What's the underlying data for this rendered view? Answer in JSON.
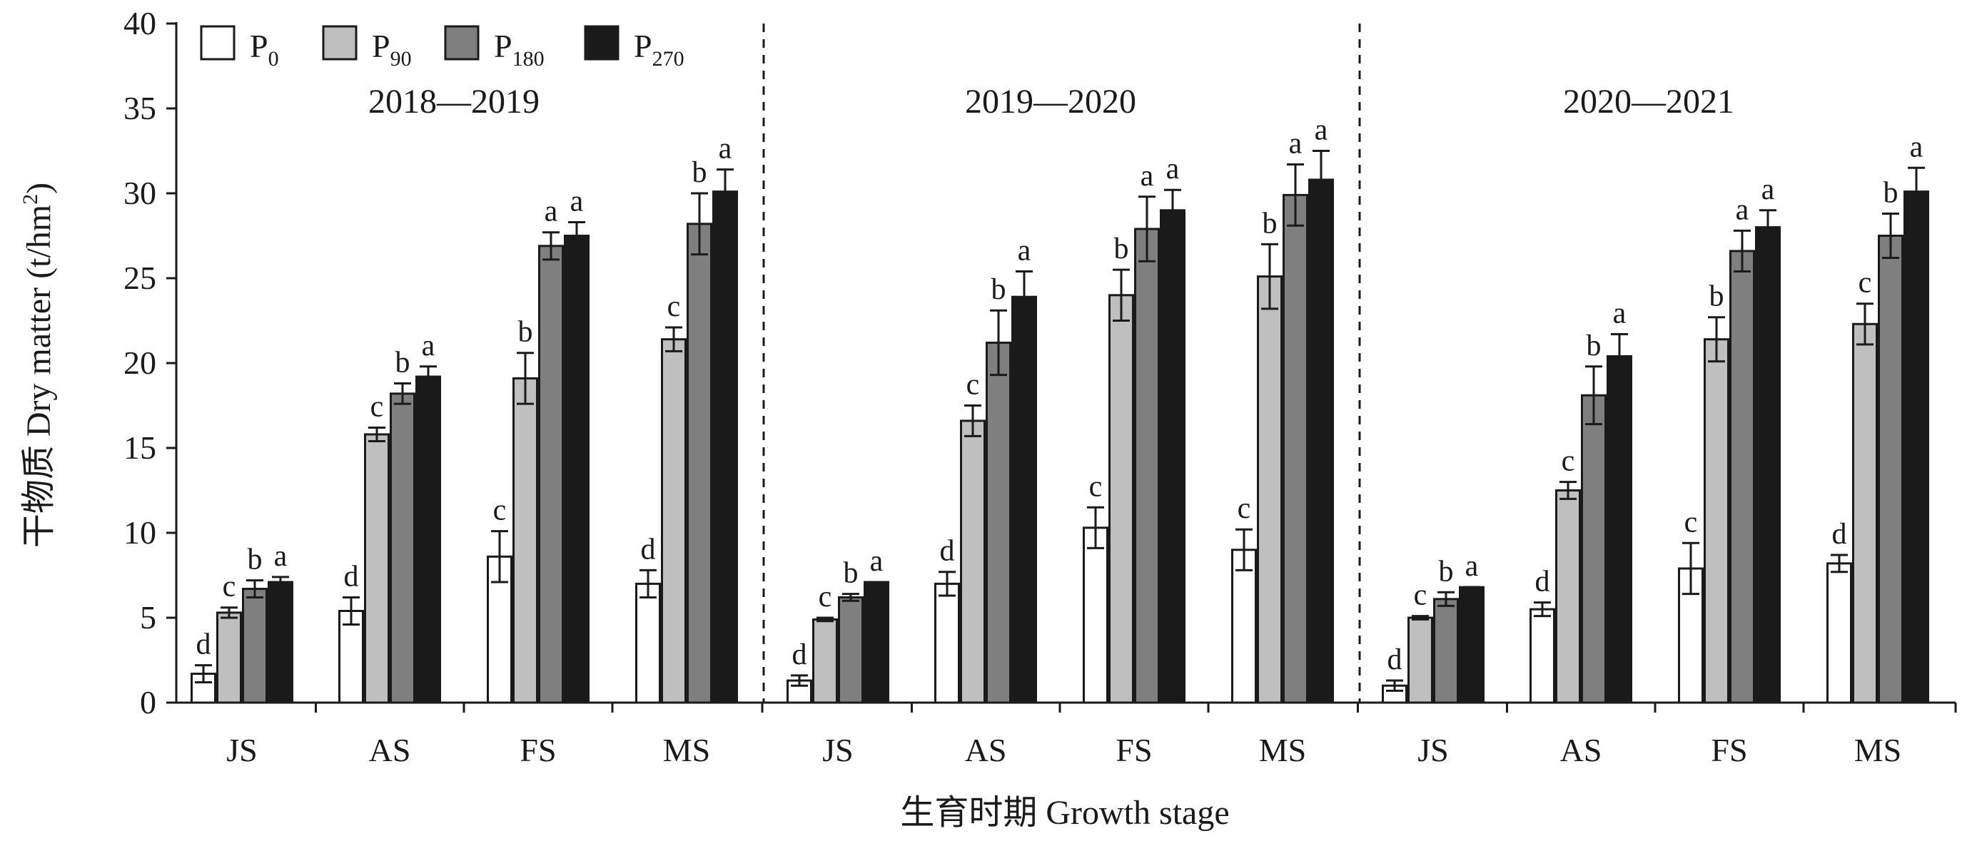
{
  "chart_data": {
    "type": "bar",
    "ylabel": "干物质 Dry matter (t/hm²)",
    "ylabel_parts": {
      "main": "干物质 Dry matter (t/hm",
      "sup": "2",
      "end": ")"
    },
    "xlabel": "生育时期 Growth stage",
    "ylim": [
      0,
      40
    ],
    "yticks": [
      0,
      5,
      10,
      15,
      20,
      25,
      30,
      35,
      40
    ],
    "legend_position": "top-left",
    "grid": false,
    "stages": [
      "JS",
      "AS",
      "FS",
      "MS"
    ],
    "series": [
      {
        "name": "P0",
        "label_main": "P",
        "label_sub": "0",
        "color": "#ffffff"
      },
      {
        "name": "P90",
        "label_main": "P",
        "label_sub": "90",
        "color": "#bfbfbf"
      },
      {
        "name": "P180",
        "label_main": "P",
        "label_sub": "180",
        "color": "#7f7f7f"
      },
      {
        "name": "P270",
        "label_main": "P",
        "label_sub": "270",
        "color": "#1a1a1a"
      }
    ],
    "periods": [
      {
        "label": "2018—2019",
        "values": [
          [
            1.7,
            5.3,
            6.7,
            7.1
          ],
          [
            5.4,
            15.8,
            18.2,
            19.2
          ],
          [
            8.6,
            19.1,
            26.9,
            27.5
          ],
          [
            7.0,
            21.4,
            28.2,
            30.1
          ]
        ],
        "errors": [
          [
            0.5,
            0.3,
            0.5,
            0.3
          ],
          [
            0.8,
            0.4,
            0.6,
            0.6
          ],
          [
            1.5,
            1.5,
            0.8,
            0.8
          ],
          [
            0.8,
            0.7,
            1.8,
            1.3
          ]
        ],
        "letters": [
          [
            "d",
            "c",
            "b",
            "a"
          ],
          [
            "d",
            "c",
            "b",
            "a"
          ],
          [
            "c",
            "b",
            "a",
            "a"
          ],
          [
            "d",
            "c",
            "b",
            "a"
          ]
        ]
      },
      {
        "label": "2019—2020",
        "values": [
          [
            1.3,
            4.9,
            6.2,
            7.1
          ],
          [
            7.0,
            16.6,
            21.2,
            23.9
          ],
          [
            10.3,
            24.0,
            27.9,
            29.0
          ],
          [
            9.0,
            25.1,
            29.9,
            30.8
          ]
        ],
        "errors": [
          [
            0.3,
            0.1,
            0.2,
            0.0
          ],
          [
            0.7,
            0.9,
            1.9,
            1.5
          ],
          [
            1.2,
            1.5,
            1.9,
            1.2
          ],
          [
            1.2,
            1.9,
            1.8,
            1.7
          ]
        ],
        "letters": [
          [
            "d",
            "c",
            "b",
            "a"
          ],
          [
            "d",
            "c",
            "b",
            "a"
          ],
          [
            "c",
            "b",
            "a",
            "a"
          ],
          [
            "c",
            "b",
            "a",
            "a"
          ]
        ]
      },
      {
        "label": "2020—2021",
        "values": [
          [
            1.0,
            5.0,
            6.1,
            6.8
          ],
          [
            5.5,
            12.5,
            18.1,
            20.4
          ],
          [
            7.9,
            21.4,
            26.6,
            28.0
          ],
          [
            8.2,
            22.3,
            27.5,
            30.1
          ]
        ],
        "errors": [
          [
            0.3,
            0.1,
            0.4,
            0.0
          ],
          [
            0.4,
            0.5,
            1.7,
            1.3
          ],
          [
            1.5,
            1.3,
            1.2,
            1.0
          ],
          [
            0.5,
            1.2,
            1.3,
            1.4
          ]
        ],
        "letters": [
          [
            "d",
            "c",
            "b",
            "a"
          ],
          [
            "d",
            "c",
            "b",
            "a"
          ],
          [
            "c",
            "b",
            "a",
            "a"
          ],
          [
            "d",
            "c",
            "b",
            "a"
          ]
        ]
      }
    ]
  }
}
